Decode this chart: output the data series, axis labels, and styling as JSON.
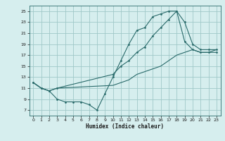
{
  "xlabel": "Humidex (Indice chaleur)",
  "ylabel": "",
  "background_color": "#d6eeee",
  "grid_color": "#a0c8c8",
  "line_color": "#2a6b6b",
  "xlim": [
    -0.5,
    23.5
  ],
  "ylim": [
    6,
    26
  ],
  "xticks": [
    0,
    1,
    2,
    3,
    4,
    5,
    6,
    7,
    8,
    9,
    10,
    11,
    12,
    13,
    14,
    15,
    16,
    17,
    18,
    19,
    20,
    21,
    22,
    23
  ],
  "yticks": [
    7,
    9,
    11,
    13,
    15,
    17,
    19,
    21,
    23,
    25
  ],
  "line1_x": [
    0,
    1,
    2,
    3,
    4,
    5,
    6,
    7,
    8,
    9,
    10,
    11,
    12,
    13,
    14,
    15,
    16,
    17,
    18,
    19,
    20,
    21,
    22,
    23
  ],
  "line1_y": [
    12,
    11,
    10.5,
    9,
    8.5,
    8.5,
    8.5,
    8,
    7,
    10,
    13,
    16,
    19,
    21.5,
    22,
    24,
    24.5,
    25,
    25,
    19.5,
    18,
    17.5,
    17.5,
    17.5
  ],
  "line2_x": [
    0,
    1,
    2,
    3,
    10,
    11,
    12,
    13,
    14,
    15,
    16,
    17,
    18,
    19,
    20,
    21,
    22,
    23
  ],
  "line2_y": [
    12,
    11,
    10.5,
    11,
    13.5,
    15,
    16,
    17.5,
    18.5,
    20.5,
    22,
    23.5,
    25,
    23,
    19,
    18,
    18,
    18
  ],
  "line3_x": [
    0,
    1,
    2,
    3,
    10,
    11,
    12,
    13,
    14,
    15,
    16,
    17,
    18,
    19,
    20,
    21,
    22,
    23
  ],
  "line3_y": [
    12,
    11,
    10.5,
    11,
    11.5,
    12,
    12.5,
    13.5,
    14,
    14.5,
    15,
    16,
    17,
    17.5,
    18,
    17.5,
    17.5,
    18
  ]
}
